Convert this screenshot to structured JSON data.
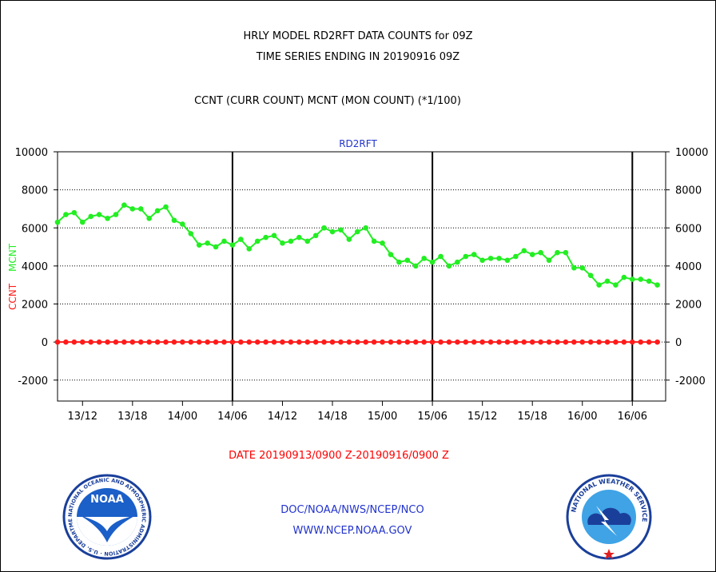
{
  "header": {
    "title_line1": "HRLY MODEL RD2RFT DATA COUNTS for 09Z",
    "title_line2": "TIME SERIES ENDING IN 20190916 09Z",
    "subtitle": "CCNT (CURR COUNT) MCNT (MON COUNT) (*1/100)"
  },
  "footer": {
    "date_range": "DATE 20190913/0900 Z-20190916/0900 Z",
    "org_line": "DOC/NOAA/NWS/NCEP/NCO",
    "url_line": "WWW.NCEP.NOAA.GOV"
  },
  "logos": {
    "noaa_text": "NOAA",
    "noaa_ring": "NATIONAL OCEANIC AND ATMOSPHERIC ADMINISTRATION · U.S. DEPARTMENT OF COMMERCE ·",
    "nws_ring": "NATIONAL WEATHER SERVICE"
  },
  "colors": {
    "ccnt": "#ff1a1a",
    "mcnt": "#22ee22",
    "panel_label": "#2233cc",
    "footer_date": "#ff0000",
    "footer_links": "#2233cc"
  },
  "chart_data": {
    "type": "line",
    "panel_label": "RD2RFT",
    "ylabel_ccnt": "CCNT",
    "ylabel_mcnt": "MCNT",
    "ylim": [
      -3100,
      10000
    ],
    "yticks": [
      -2000,
      0,
      2000,
      4000,
      6000,
      8000,
      10000
    ],
    "xlim": [
      0,
      73
    ],
    "xticks": [
      {
        "x": 3,
        "label": "13/12"
      },
      {
        "x": 9,
        "label": "13/18"
      },
      {
        "x": 15,
        "label": "14/00"
      },
      {
        "x": 21,
        "label": "14/06"
      },
      {
        "x": 27,
        "label": "14/12"
      },
      {
        "x": 33,
        "label": "14/18"
      },
      {
        "x": 39,
        "label": "15/00"
      },
      {
        "x": 45,
        "label": "15/06"
      },
      {
        "x": 51,
        "label": "15/12"
      },
      {
        "x": 57,
        "label": "15/18"
      },
      {
        "x": 63,
        "label": "16/00"
      },
      {
        "x": 69,
        "label": "16/06"
      }
    ],
    "vlines": [
      21,
      45,
      69
    ],
    "grid": true,
    "series": [
      {
        "name": "MCNT",
        "values": [
          6300,
          6700,
          6800,
          6300,
          6600,
          6700,
          6500,
          6700,
          7200,
          7000,
          7000,
          6500,
          6900,
          7100,
          6400,
          6200,
          5700,
          5100,
          5200,
          5000,
          5300,
          5100,
          5400,
          4900,
          5300,
          5500,
          5600,
          5200,
          5300,
          5500,
          5300,
          5600,
          6000,
          5800,
          5900,
          5400,
          5800,
          6000,
          5300,
          5200,
          4600,
          4200,
          4300,
          4000,
          4400,
          4200,
          4500,
          4000,
          4200,
          4500,
          4600,
          4300,
          4400,
          4400,
          4300,
          4500,
          4800,
          4600,
          4700,
          4300,
          4700,
          4700,
          3900,
          3900,
          3500,
          3000,
          3200,
          3000,
          3400,
          3300,
          3300,
          3200,
          3000
        ]
      },
      {
        "name": "CCNT",
        "values": [
          0,
          0,
          0,
          0,
          0,
          0,
          0,
          0,
          0,
          0,
          0,
          0,
          0,
          0,
          0,
          0,
          0,
          0,
          0,
          0,
          0,
          0,
          0,
          0,
          0,
          0,
          0,
          0,
          0,
          0,
          0,
          0,
          0,
          0,
          0,
          0,
          0,
          0,
          0,
          0,
          0,
          0,
          0,
          0,
          0,
          0,
          0,
          0,
          0,
          0,
          0,
          0,
          0,
          0,
          0,
          0,
          0,
          0,
          0,
          0,
          0,
          0,
          0,
          0,
          0,
          0,
          0,
          0,
          0,
          0,
          0,
          0,
          0
        ]
      }
    ]
  }
}
